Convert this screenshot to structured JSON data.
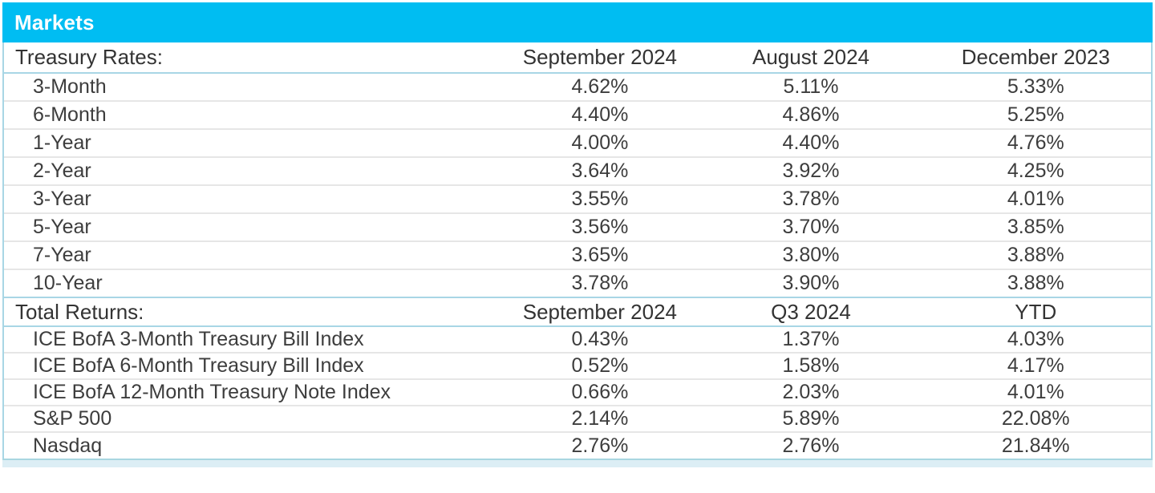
{
  "colors": {
    "header_bar": "#00bdf2",
    "header_text": "#ffffff",
    "section_divider": "#a8d6e5",
    "row_divider": "#e6e6e6",
    "body_text": "#3d3d3d",
    "bottom_line": "#a8d6e0",
    "bottom_strip": "#dceef5"
  },
  "chart_data": {
    "type": "table",
    "title": "Markets",
    "sections": [
      {
        "label": "Treasury Rates:",
        "columns": [
          "September 2024",
          "August 2024",
          "December 2023"
        ],
        "rows": [
          {
            "label": "3-Month",
            "values": [
              "4.62%",
              "5.11%",
              "5.33%"
            ]
          },
          {
            "label": "6-Month",
            "values": [
              "4.40%",
              "4.86%",
              "5.25%"
            ]
          },
          {
            "label": "1-Year",
            "values": [
              "4.00%",
              "4.40%",
              "4.76%"
            ]
          },
          {
            "label": "2-Year",
            "values": [
              "3.64%",
              "3.92%",
              "4.25%"
            ]
          },
          {
            "label": "3-Year",
            "values": [
              "3.55%",
              "3.78%",
              "4.01%"
            ]
          },
          {
            "label": "5-Year",
            "values": [
              "3.56%",
              "3.70%",
              "3.85%"
            ]
          },
          {
            "label": "7-Year",
            "values": [
              "3.65%",
              "3.80%",
              "3.88%"
            ]
          },
          {
            "label": "10-Year",
            "values": [
              "3.78%",
              "3.90%",
              "3.88%"
            ]
          }
        ]
      },
      {
        "label": "Total Returns:",
        "columns": [
          "September 2024",
          "Q3 2024",
          "YTD"
        ],
        "rows": [
          {
            "label": "ICE BofA 3-Month Treasury Bill Index",
            "values": [
              "0.43%",
              "1.37%",
              "4.03%"
            ]
          },
          {
            "label": "ICE BofA 6-Month Treasury Bill Index",
            "values": [
              "0.52%",
              "1.58%",
              "4.17%"
            ]
          },
          {
            "label": "ICE BofA 12-Month Treasury Note Index",
            "values": [
              "0.66%",
              "2.03%",
              "4.01%"
            ]
          },
          {
            "label": "S&P 500",
            "values": [
              "2.14%",
              "5.89%",
              "22.08%"
            ]
          },
          {
            "label": "Nasdaq",
            "values": [
              "2.76%",
              "2.76%",
              "21.84%"
            ]
          }
        ]
      }
    ]
  }
}
